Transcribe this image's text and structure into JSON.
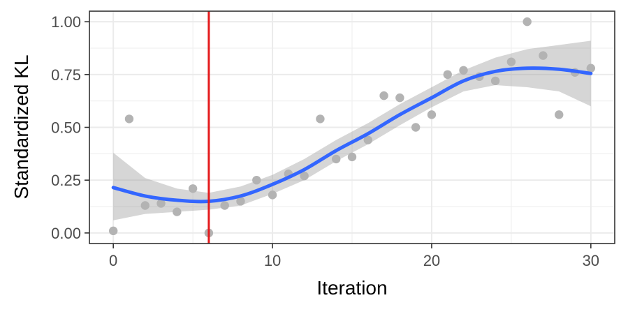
{
  "chart_data": {
    "type": "scatter",
    "title": "",
    "xlabel": "Iteration",
    "ylabel": "Standardized KL",
    "xlim": [
      -1.5,
      31.5
    ],
    "ylim": [
      -0.05,
      1.05
    ],
    "x_ticks": [
      0,
      10,
      20,
      30
    ],
    "y_ticks": [
      0,
      0.25,
      0.5,
      0.75,
      1.0
    ],
    "x_tick_labels": [
      "0",
      "10",
      "20",
      "30"
    ],
    "y_tick_labels": [
      "0.00",
      "0.25",
      "0.50",
      "0.75",
      "1.00"
    ],
    "grid": true,
    "theme": "bw",
    "points": {
      "color": "#b3b3b3",
      "x": [
        0,
        1,
        2,
        3,
        4,
        5,
        6,
        7,
        8,
        9,
        10,
        11,
        12,
        13,
        14,
        15,
        16,
        17,
        18,
        19,
        20,
        21,
        22,
        23,
        24,
        25,
        26,
        27,
        28,
        29,
        30
      ],
      "y": [
        0.01,
        0.54,
        0.13,
        0.14,
        0.1,
        0.21,
        0.0,
        0.13,
        0.15,
        0.25,
        0.18,
        0.28,
        0.27,
        0.54,
        0.35,
        0.36,
        0.44,
        0.65,
        0.64,
        0.5,
        0.56,
        0.75,
        0.77,
        0.74,
        0.72,
        0.81,
        1.0,
        0.84,
        0.56,
        0.76,
        0.78
      ]
    },
    "smooth": {
      "color": "#3366ff",
      "band_color": "#999999",
      "x": [
        0,
        2,
        4,
        6,
        8,
        10,
        12,
        14,
        16,
        18,
        20,
        22,
        24,
        26,
        28,
        30
      ],
      "y": [
        0.215,
        0.175,
        0.155,
        0.15,
        0.175,
        0.23,
        0.3,
        0.39,
        0.47,
        0.56,
        0.64,
        0.72,
        0.765,
        0.78,
        0.775,
        0.755
      ],
      "lower": [
        0.06,
        0.09,
        0.1,
        0.11,
        0.13,
        0.185,
        0.25,
        0.34,
        0.42,
        0.51,
        0.595,
        0.67,
        0.7,
        0.69,
        0.67,
        0.6
      ],
      "upper": [
        0.38,
        0.26,
        0.21,
        0.19,
        0.22,
        0.275,
        0.35,
        0.44,
        0.52,
        0.61,
        0.69,
        0.77,
        0.83,
        0.87,
        0.89,
        0.91
      ]
    },
    "vline": {
      "x": 6,
      "color": "#e41a1c"
    }
  }
}
